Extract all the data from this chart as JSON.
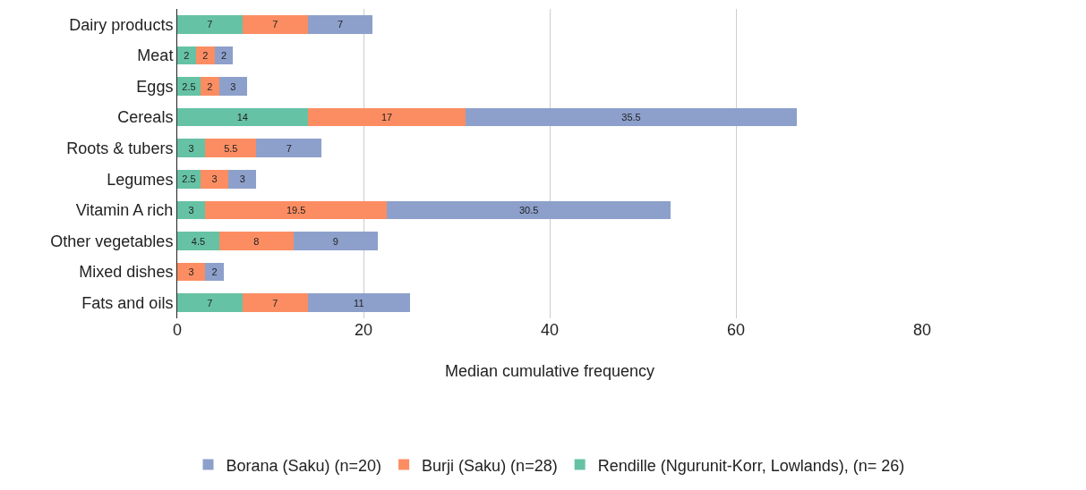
{
  "chart_data": {
    "type": "bar",
    "orientation": "horizontal",
    "stacked": true,
    "categories": [
      "Dairy products",
      "Meat",
      "Eggs",
      "Cereals",
      "Roots & tubers",
      "Legumes",
      "Vitamin A rich",
      "Other vegetables",
      "Mixed dishes",
      "Fats and oils"
    ],
    "series": [
      {
        "name": "Rendille (Ngurunit-Korr, Lowlands), (n= 26)",
        "color": "#66c2a5",
        "values": [
          7,
          2,
          2.5,
          14,
          3,
          2.5,
          3,
          4.5,
          null,
          7
        ]
      },
      {
        "name": "Burji (Saku) (n=28)",
        "color": "#fc8d62",
        "values": [
          7,
          2,
          2,
          17,
          5.5,
          3,
          19.5,
          8,
          3,
          7
        ]
      },
      {
        "name": "Borana (Saku) (n=20)",
        "color": "#8da0cb",
        "values": [
          7,
          2,
          3,
          35.5,
          7,
          3,
          30.5,
          9,
          2,
          11
        ]
      }
    ],
    "xlabel": "Median cumulative frequency",
    "xlim": [
      0,
      80
    ],
    "xticks": [
      0,
      20,
      40,
      60,
      80
    ],
    "grid": "x",
    "legend": "bottom",
    "data_labels": true
  }
}
